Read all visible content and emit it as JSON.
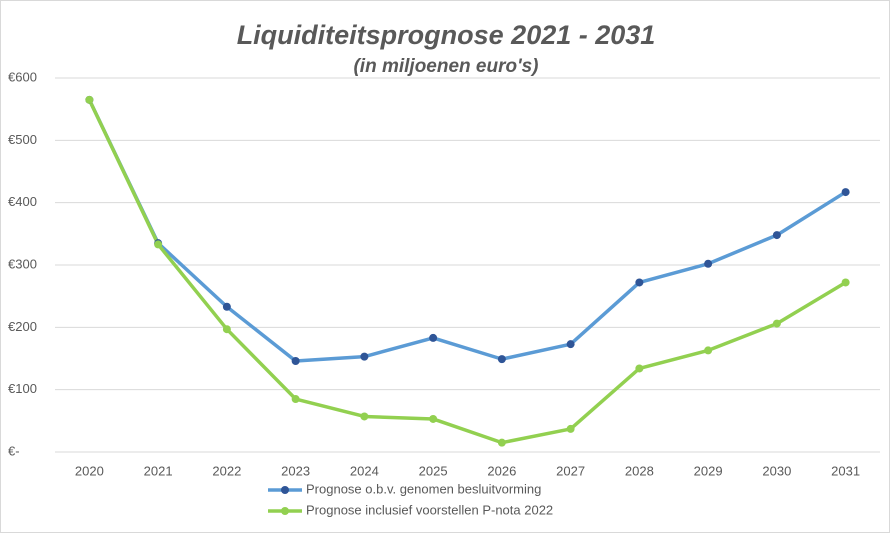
{
  "chart_data": {
    "type": "line",
    "title": "Liquiditeitsprognose 2021 - 2031",
    "subtitle": "(in miljoenen euro's)",
    "categories": [
      "2020",
      "2021",
      "2022",
      "2023",
      "2024",
      "2025",
      "2026",
      "2027",
      "2028",
      "2029",
      "2030",
      "2031"
    ],
    "series": [
      {
        "name": "Prognose o.b.v. genomen besluitvorming",
        "color": "#5b9bd5",
        "marker_color": "#2f5597",
        "values": [
          565,
          335,
          233,
          146,
          153,
          183,
          149,
          173,
          272,
          302,
          348,
          417
        ]
      },
      {
        "name": "Prognose inclusief voorstellen P-nota 2022",
        "color": "#92d050",
        "marker_color": "#92d050",
        "values": [
          565,
          333,
          197,
          85,
          57,
          53,
          15,
          37,
          134,
          163,
          206,
          272
        ]
      }
    ],
    "ylim": [
      0,
      600
    ],
    "yticks": [
      {
        "value": 0,
        "label": "€-"
      },
      {
        "value": 100,
        "label": "€100"
      },
      {
        "value": 200,
        "label": "€200"
      },
      {
        "value": 300,
        "label": "€300"
      },
      {
        "value": 400,
        "label": "€400"
      },
      {
        "value": 500,
        "label": "€500"
      },
      {
        "value": 600,
        "label": "€600"
      }
    ],
    "grid": true,
    "legend": "bottom"
  }
}
